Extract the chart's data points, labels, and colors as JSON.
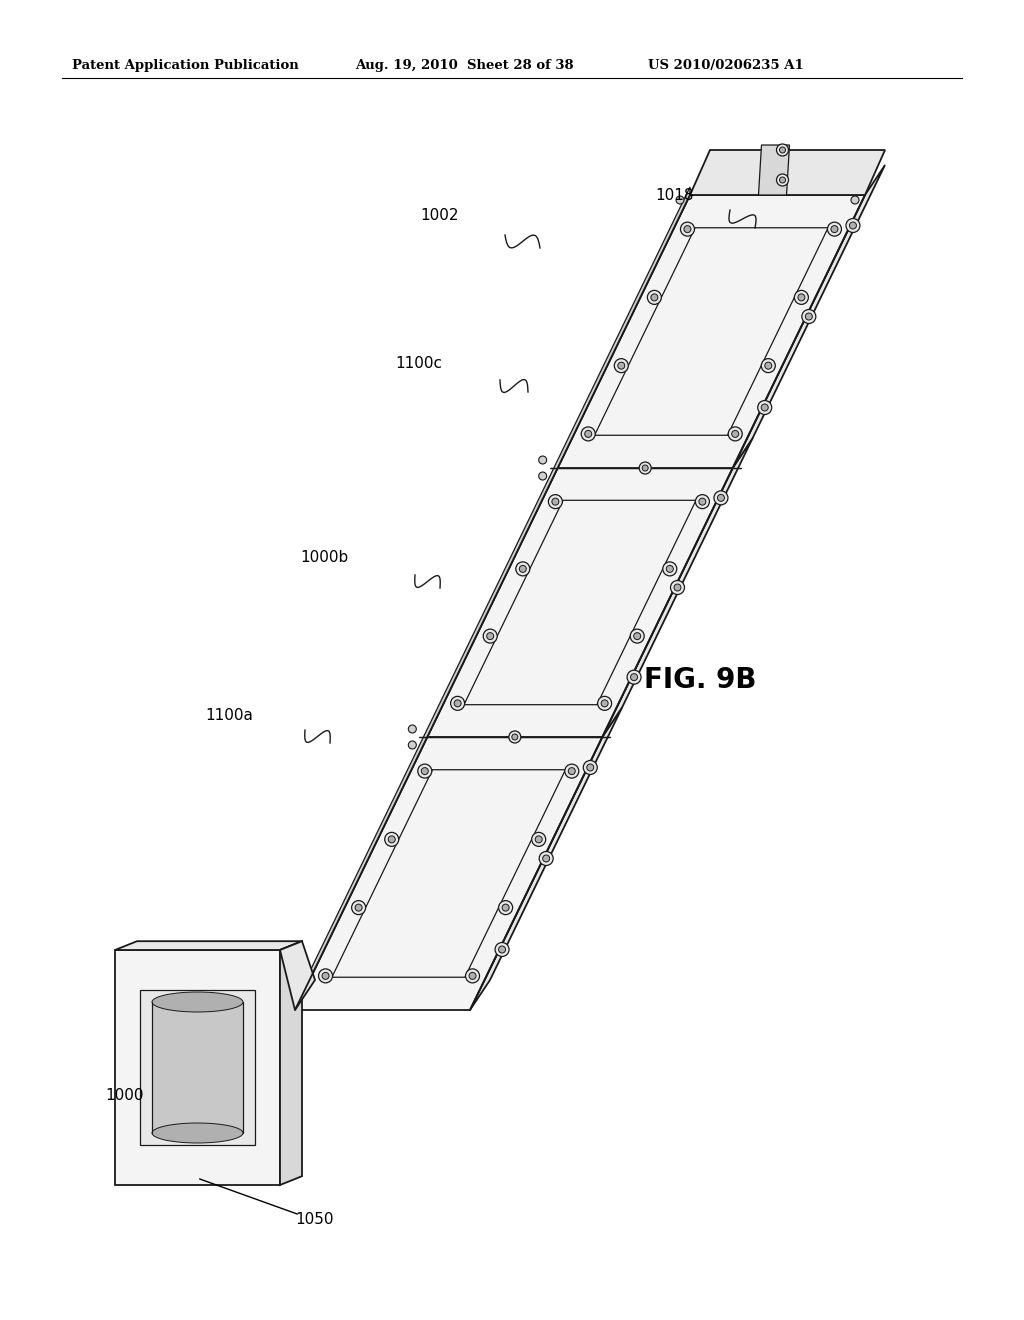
{
  "background_color": "#ffffff",
  "header_left": "Patent Application Publication",
  "header_center": "Aug. 19, 2010  Sheet 28 of 38",
  "header_right": "US 2010/0206235 A1",
  "figure_label": "FIG. 9B",
  "line_color": "#1a1a1a",
  "face_light": "#f0f0f0",
  "face_mid": "#e0e0e0",
  "face_dark": "#c8c8c8"
}
